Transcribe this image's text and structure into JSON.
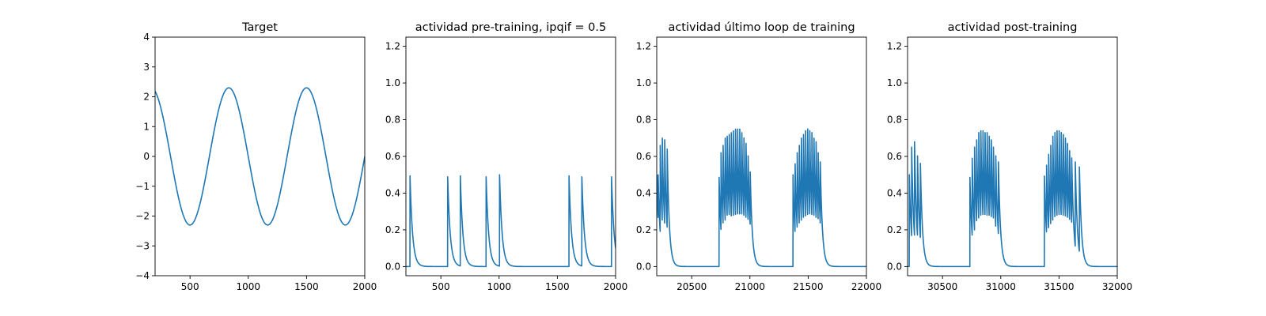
{
  "chart_data": [
    {
      "type": "line",
      "title": "Target",
      "xlabel": "",
      "ylabel": "",
      "xlim": [
        200,
        2000
      ],
      "ylim": [
        -4,
        4
      ],
      "xticks": [
        500,
        1000,
        1500,
        2000
      ],
      "yticks": [
        -4,
        -3,
        -2,
        -1,
        0,
        1,
        2,
        3,
        4
      ],
      "ytick_labels": [
        "−4",
        "−3",
        "−2",
        "−1",
        "0",
        "1",
        "2",
        "3",
        "4"
      ],
      "color": "#1f77b4",
      "series": [
        {
          "kind": "sine",
          "amplitude": 2.3,
          "period": 667,
          "peaks": [
            833,
            1500
          ],
          "troughs": [
            500,
            1167,
            1833
          ]
        }
      ]
    },
    {
      "type": "line",
      "title": "actividad pre-training, ipqif = 0.5",
      "xlabel": "",
      "ylabel": "",
      "xlim": [
        200,
        2000
      ],
      "ylim": [
        -0.05,
        1.25
      ],
      "xticks": [
        500,
        1000,
        1500,
        2000
      ],
      "yticks": [
        0.0,
        0.2,
        0.4,
        0.6,
        0.8,
        1.0,
        1.2
      ],
      "ytick_labels": [
        "0.0",
        "0.2",
        "0.4",
        "0.6",
        "0.8",
        "1.0",
        "1.2"
      ],
      "color": "#1f77b4",
      "series": [
        {
          "kind": "spikes",
          "decay": 22,
          "spikes": [
            [
              235,
              0.5
            ],
            [
              558,
              0.5
            ],
            [
              667,
              0.5
            ],
            [
              888,
              0.5
            ],
            [
              1004,
              0.5
            ],
            [
              1600,
              0.5
            ],
            [
              1710,
              0.5
            ],
            [
              1965,
              0.5
            ]
          ]
        }
      ]
    },
    {
      "type": "line",
      "title": "actividad último loop de training",
      "xlabel": "",
      "ylabel": "",
      "xlim": [
        20200,
        22000
      ],
      "ylim": [
        -0.05,
        1.25
      ],
      "xticks": [
        20500,
        21000,
        21500,
        22000
      ],
      "yticks": [
        0.0,
        0.2,
        0.4,
        0.6,
        0.8,
        1.0,
        1.2
      ],
      "ytick_labels": [
        "0.0",
        "0.2",
        "0.4",
        "0.6",
        "0.8",
        "1.0",
        "1.2"
      ],
      "color": "#1f77b4",
      "series": [
        {
          "kind": "spikes",
          "decay": 18,
          "spikes": [
            [
              20200,
              0.5
            ],
            [
              20212,
              0.5
            ],
            [
              20230,
              0.66
            ],
            [
              20248,
              0.7
            ],
            [
              20268,
              0.7
            ],
            [
              20290,
              0.64
            ],
            [
              20735,
              0.5
            ],
            [
              20752,
              0.62
            ],
            [
              20770,
              0.66
            ],
            [
              20788,
              0.7
            ],
            [
              20805,
              0.72
            ],
            [
              20822,
              0.74
            ],
            [
              20840,
              0.75
            ],
            [
              20858,
              0.76
            ],
            [
              20876,
              0.77
            ],
            [
              20894,
              0.77
            ],
            [
              20912,
              0.77
            ],
            [
              20930,
              0.75
            ],
            [
              20948,
              0.72
            ],
            [
              20966,
              0.69
            ],
            [
              20984,
              0.62
            ],
            [
              21002,
              0.53
            ],
            [
              21370,
              0.5
            ],
            [
              21388,
              0.56
            ],
            [
              21406,
              0.62
            ],
            [
              21424,
              0.66
            ],
            [
              21442,
              0.7
            ],
            [
              21460,
              0.72
            ],
            [
              21478,
              0.74
            ],
            [
              21496,
              0.75
            ],
            [
              21514,
              0.74
            ],
            [
              21532,
              0.73
            ],
            [
              21550,
              0.7
            ],
            [
              21568,
              0.68
            ],
            [
              21586,
              0.62
            ],
            [
              21604,
              0.57
            ]
          ]
        }
      ]
    },
    {
      "type": "line",
      "title": "actividad post-training",
      "xlabel": "",
      "ylabel": "",
      "xlim": [
        30200,
        32000
      ],
      "ylim": [
        -0.05,
        1.25
      ],
      "xticks": [
        30500,
        31000,
        31500,
        32000
      ],
      "yticks": [
        0.0,
        0.2,
        0.4,
        0.6,
        0.8,
        1.0,
        1.2
      ],
      "ytick_labels": [
        "0.0",
        "0.2",
        "0.4",
        "0.6",
        "0.8",
        "1.0",
        "1.2"
      ],
      "color": "#1f77b4",
      "series": [
        {
          "kind": "spikes",
          "decay": 18,
          "spikes": [
            [
              30215,
              0.5
            ],
            [
              30235,
              0.66
            ],
            [
              30260,
              0.68
            ],
            [
              30285,
              0.62
            ],
            [
              30310,
              0.57
            ],
            [
              30735,
              0.5
            ],
            [
              30755,
              0.59
            ],
            [
              30775,
              0.66
            ],
            [
              30793,
              0.7
            ],
            [
              30811,
              0.74
            ],
            [
              30829,
              0.75
            ],
            [
              30847,
              0.75
            ],
            [
              30865,
              0.74
            ],
            [
              30883,
              0.74
            ],
            [
              30901,
              0.72
            ],
            [
              30919,
              0.7
            ],
            [
              30937,
              0.66
            ],
            [
              30957,
              0.62
            ],
            [
              30980,
              0.57
            ],
            [
              31375,
              0.5
            ],
            [
              31393,
              0.56
            ],
            [
              31411,
              0.62
            ],
            [
              31429,
              0.67
            ],
            [
              31447,
              0.72
            ],
            [
              31465,
              0.74
            ],
            [
              31483,
              0.75
            ],
            [
              31501,
              0.75
            ],
            [
              31519,
              0.74
            ],
            [
              31537,
              0.73
            ],
            [
              31555,
              0.71
            ],
            [
              31573,
              0.68
            ],
            [
              31591,
              0.64
            ],
            [
              31609,
              0.6
            ],
            [
              31640,
              0.57
            ],
            [
              31675,
              0.55
            ]
          ]
        }
      ]
    }
  ]
}
